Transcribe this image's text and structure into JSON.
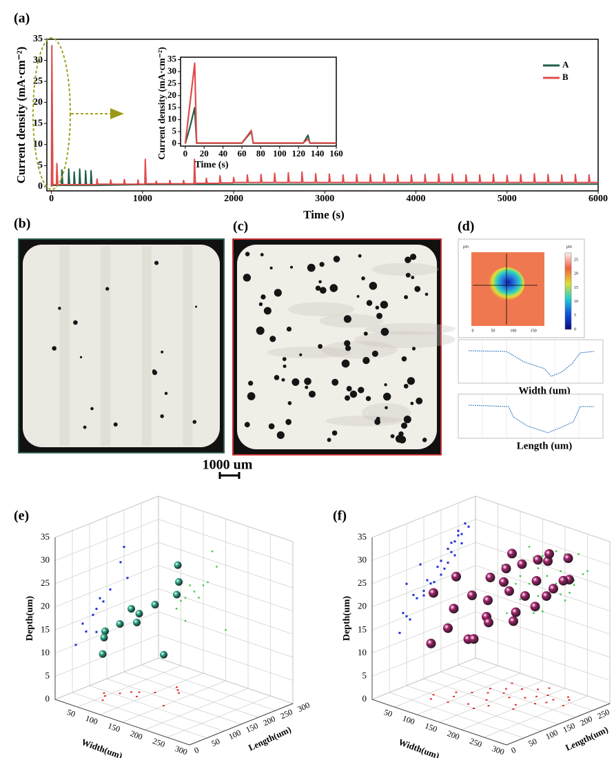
{
  "figure": {
    "panel_labels": [
      "(a)",
      "(b)",
      "(c)",
      "(d)",
      "(e)",
      "(f)"
    ],
    "scale_bar": "1000 um",
    "panel_d": {
      "unit": "μm",
      "map_ticks": [
        0,
        50,
        100,
        150
      ],
      "colorbar_ticks": [
        25,
        20,
        15,
        10,
        5,
        0
      ],
      "profile_labels": [
        "Width (um)",
        "Length (um)"
      ]
    }
  },
  "chart_data": [
    {
      "type": "line",
      "x_label": "Time (s)",
      "y_label": "Current density (mA·cm⁻²)",
      "xlim": [
        -50,
        6000
      ],
      "ylim": [
        -1,
        35
      ],
      "xticks": [
        0,
        1000,
        2000,
        3000,
        4000,
        5000,
        6000
      ],
      "yticks": [
        0,
        5,
        10,
        15,
        20,
        25,
        30,
        35
      ],
      "legend": "top-right",
      "series": [
        {
          "name": "A",
          "color": "#1f5c4a",
          "x": [
            0,
            10,
            15,
            110,
            115,
            125,
            185,
            190,
            200,
            245,
            250,
            260,
            305,
            310,
            320,
            370,
            375,
            385,
            430,
            435,
            445,
            1000,
            6000
          ],
          "values": [
            0,
            15,
            0.3,
            0.3,
            4,
            0.3,
            0.3,
            4.2,
            0.3,
            0.3,
            3.5,
            0.3,
            0.3,
            4.2,
            0.3,
            0.3,
            3.8,
            0.3,
            0.3,
            3.8,
            0.3,
            0.5,
            0.6
          ]
        },
        {
          "name": "B",
          "color": "#e04b4b",
          "x": [
            0,
            5,
            15,
            55,
            60,
            70,
            495,
            500,
            510,
            645,
            650,
            660,
            795,
            800,
            810,
            945,
            950,
            960,
            1025,
            1030,
            1040,
            1145,
            1150,
            1160,
            1295,
            1300,
            1310,
            1445,
            1450,
            1460,
            1565,
            1570,
            1580,
            1695,
            1700,
            1710,
            1845,
            1850,
            1860,
            1995,
            2000,
            2010,
            2145,
            2150,
            2160,
            2295,
            2300,
            2310,
            2445,
            2450,
            2460,
            2595,
            2600,
            2610,
            2745,
            2750,
            2760,
            2895,
            2900,
            2910,
            3045,
            3050,
            3060,
            3195,
            3200,
            3210,
            3345,
            3350,
            3360,
            3495,
            3500,
            3510,
            3645,
            3650,
            3660,
            3795,
            3800,
            3810,
            3945,
            3950,
            3960,
            4095,
            4100,
            4110,
            4245,
            4250,
            4260,
            4395,
            4400,
            4410,
            4545,
            4550,
            4560,
            4695,
            4700,
            4710,
            4845,
            4850,
            4860,
            4995,
            5000,
            5010,
            5145,
            5150,
            5160,
            5295,
            5300,
            5310,
            5445,
            5450,
            5460,
            5595,
            5600,
            5610,
            5745,
            5750,
            5760,
            5895,
            5900,
            5910,
            6000
          ],
          "values": [
            0,
            33.5,
            0.5,
            0.5,
            5.5,
            0.5,
            0.5,
            1.8,
            0.6,
            0.6,
            1.6,
            0.6,
            0.6,
            1.7,
            0.6,
            0.6,
            1.6,
            0.6,
            0.6,
            6.5,
            0.7,
            0.7,
            1.3,
            0.7,
            0.7,
            1.5,
            0.7,
            0.7,
            1.5,
            0.7,
            0.7,
            6.5,
            0.8,
            0.8,
            2.0,
            0.8,
            0.8,
            2.6,
            0.9,
            0.9,
            2.2,
            1,
            1,
            2.8,
            1,
            1,
            2.9,
            1,
            1,
            3.2,
            1,
            1,
            3.3,
            1,
            1,
            3.5,
            1,
            1,
            3.1,
            1,
            1,
            3.0,
            1,
            1,
            2.8,
            1,
            1,
            2.9,
            1,
            1,
            2.9,
            1,
            1,
            3.0,
            1,
            1,
            2.8,
            1,
            1,
            2.8,
            1,
            1,
            2.9,
            1,
            1,
            3.0,
            1,
            1,
            3.0,
            1,
            1,
            2.8,
            1,
            1,
            2.8,
            1,
            1,
            2.9,
            1,
            1,
            2.7,
            1,
            1,
            2.9,
            1,
            1,
            3.1,
            1,
            1,
            2.9,
            1,
            1,
            2.8,
            1,
            1,
            2.9,
            1,
            1,
            2.8,
            1,
            1
          ]
        }
      ]
    },
    {
      "type": "line",
      "x_label": "Time (s)",
      "y_label": "Current density (mA·cm⁻²)",
      "xlim": [
        -5,
        160
      ],
      "ylim": [
        -1,
        36
      ],
      "xticks": [
        0,
        20,
        40,
        60,
        80,
        100,
        120,
        140,
        160
      ],
      "yticks": [
        0,
        5,
        10,
        15,
        20,
        25,
        30,
        35
      ],
      "series": [
        {
          "color": "#1f5c4a",
          "x": [
            0,
            5,
            10,
            12,
            60,
            70,
            72,
            125,
            130,
            132,
            160
          ],
          "values": [
            0,
            7,
            15,
            0.2,
            0.2,
            5,
            0.2,
            0.2,
            3.5,
            0.2,
            0.2
          ]
        },
        {
          "color": "#e04b4b",
          "x": [
            0,
            10,
            12,
            60,
            70,
            72,
            125,
            130,
            132,
            160
          ],
          "values": [
            0,
            33.5,
            0.3,
            0.3,
            5.5,
            0.3,
            0.3,
            2,
            0.3,
            0.3
          ]
        }
      ]
    },
    {
      "type": "scatter3d",
      "x_label": "Width(um)",
      "y_label": "Length(um)",
      "z_label": "Depth(um)",
      "xlim": [
        0,
        300
      ],
      "ylim": [
        0,
        300
      ],
      "zlim": [
        0,
        35
      ],
      "xticks": [
        50,
        100,
        150,
        200,
        250,
        300
      ],
      "yticks": [
        0,
        50,
        100,
        150,
        200,
        250,
        300
      ],
      "zticks": [
        0,
        5,
        10,
        15,
        20,
        25,
        30,
        35
      ],
      "wall_colors": [
        "#1f2fd6",
        "#3ac43a",
        "#e02b2b"
      ],
      "series": [
        {
          "color": "#2aa88a",
          "x": [
            120,
            130,
            80,
            90,
            60,
            70,
            50,
            40,
            100,
            150,
            60,
            110
          ],
          "y": [
            200,
            190,
            140,
            120,
            110,
            130,
            80,
            90,
            160,
            120,
            60,
            210
          ],
          "z": [
            27,
            24,
            17,
            16,
            15,
            18,
            14,
            12,
            19,
            11,
            10,
            20
          ]
        }
      ]
    },
    {
      "type": "scatter3d",
      "x_label": "Width(um)",
      "y_label": "Length(um)",
      "z_label": "Depth(um)",
      "xlim": [
        0,
        300
      ],
      "ylim": [
        0,
        300
      ],
      "zlim": [
        0,
        35
      ],
      "xticks": [
        50,
        100,
        150,
        200,
        250,
        300
      ],
      "yticks": [
        0,
        50,
        100,
        150,
        200,
        250,
        300
      ],
      "zticks": [
        0,
        5,
        10,
        15,
        20,
        25,
        30,
        35
      ],
      "wall_colors": [
        "#1f2fd6",
        "#3ac43a",
        "#e02b2b"
      ],
      "series": [
        {
          "color": "#a0206a",
          "x": [
            60,
            80,
            90,
            100,
            110,
            120,
            130,
            140,
            150,
            160,
            170,
            180,
            190,
            200,
            210,
            220,
            230,
            240,
            100,
            130,
            160,
            190,
            220,
            70,
            150,
            180,
            120,
            200,
            250,
            140
          ],
          "y": [
            100,
            140,
            120,
            160,
            200,
            180,
            220,
            150,
            240,
            190,
            260,
            210,
            230,
            250,
            200,
            240,
            270,
            260,
            90,
            110,
            130,
            170,
            220,
            80,
            100,
            280,
            250,
            150,
            230,
            200
          ],
          "z": [
            22,
            25,
            19,
            21,
            24,
            20,
            26,
            18,
            27,
            23,
            28,
            22,
            25,
            29,
            21,
            24,
            30,
            26,
            16,
            14,
            18,
            20,
            23,
            12,
            15,
            29,
            28,
            19,
            27,
            24
          ]
        }
      ]
    }
  ]
}
